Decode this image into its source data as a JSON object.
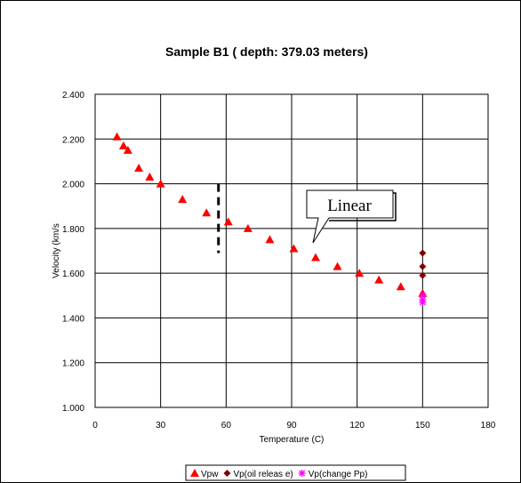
{
  "chart_data": {
    "type": "scatter",
    "title": "Sample B1 ( depth: 379.03 meters)",
    "xlabel": "Temperature (C)",
    "ylabel": "Velocity (km/s",
    "xlim": [
      0,
      180
    ],
    "ylim": [
      1.0,
      2.4
    ],
    "x_ticks": [
      "0",
      "30",
      "60",
      "90",
      "120",
      "150",
      "180"
    ],
    "y_ticks": [
      "1.000",
      "1.200",
      "1.400",
      "1.600",
      "1.800",
      "2.000",
      "2.200",
      "2.400"
    ],
    "grid": true,
    "legend_position": "bottom",
    "series": [
      {
        "name": "Vpw",
        "marker": "triangle",
        "color": "#ff0000",
        "points": [
          {
            "x": 10,
            "y": 2.21
          },
          {
            "x": 13,
            "y": 2.17
          },
          {
            "x": 15,
            "y": 2.15
          },
          {
            "x": 20,
            "y": 2.07
          },
          {
            "x": 25,
            "y": 2.03
          },
          {
            "x": 30,
            "y": 2.0
          },
          {
            "x": 40,
            "y": 1.93
          },
          {
            "x": 51,
            "y": 1.87
          },
          {
            "x": 61,
            "y": 1.83
          },
          {
            "x": 70,
            "y": 1.8
          },
          {
            "x": 80,
            "y": 1.75
          },
          {
            "x": 91,
            "y": 1.71
          },
          {
            "x": 101,
            "y": 1.67
          },
          {
            "x": 111,
            "y": 1.63
          },
          {
            "x": 121,
            "y": 1.6
          },
          {
            "x": 130,
            "y": 1.57
          },
          {
            "x": 140,
            "y": 1.54
          },
          {
            "x": 150,
            "y": 1.51
          }
        ]
      },
      {
        "name": "Vp(oil releas e)",
        "marker": "diamond",
        "color": "#800000",
        "points": [
          {
            "x": 150,
            "y": 1.69
          },
          {
            "x": 150,
            "y": 1.63
          },
          {
            "x": 150,
            "y": 1.59
          }
        ]
      },
      {
        "name": "Vp(change Pp)",
        "marker": "star",
        "color": "#ff00ff",
        "points": [
          {
            "x": 150,
            "y": 1.5
          },
          {
            "x": 150,
            "y": 1.48
          },
          {
            "x": 150,
            "y": 1.47
          }
        ]
      }
    ],
    "annotations": [
      {
        "text": "Linear",
        "type": "callout"
      }
    ],
    "dashed_marker": {
      "x": 56.5,
      "y_from": 1.69,
      "y_to": 2.0
    }
  }
}
